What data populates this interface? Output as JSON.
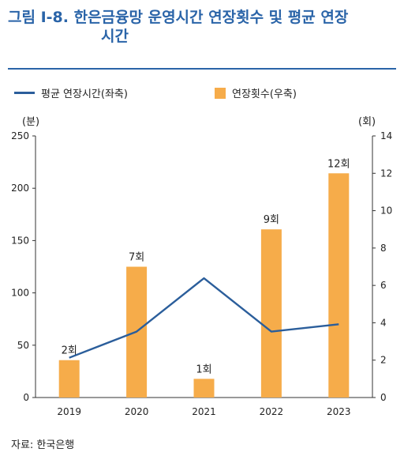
{
  "title": {
    "line1": "그림 I-8. 한은금융망 운영시간 연장횟수 및 평균 연장",
    "line2": "시간"
  },
  "source": "자료: 한국은행",
  "colors": {
    "title": "#2a64a8",
    "line": "#2b5e9b",
    "bar": "#f6ac4a",
    "axis": "#333333"
  },
  "chart_data": {
    "type": "bar",
    "categories": [
      "2019",
      "2020",
      "2021",
      "2022",
      "2023"
    ],
    "series": [
      {
        "name": "평균 연장시간(좌축)",
        "type": "line",
        "axis": "left",
        "values": [
          38,
          63,
          114,
          63,
          70
        ]
      },
      {
        "name": "연장횟수(우축)",
        "type": "bar",
        "axis": "right",
        "values": [
          2,
          7,
          1,
          9,
          12
        ]
      }
    ],
    "data_labels": [
      "2회",
      "7회",
      "1회",
      "9회",
      "12회"
    ],
    "y_left": {
      "unit": "(분)",
      "ylim": [
        0,
        250
      ],
      "ticks": [
        "0",
        "50",
        "100",
        "150",
        "200",
        "250"
      ]
    },
    "y_right": {
      "unit": "(회)",
      "ylim": [
        0,
        14
      ],
      "ticks": [
        "0",
        "2",
        "4",
        "6",
        "8",
        "10",
        "12",
        "14"
      ]
    },
    "legend": {
      "placement": "top-left"
    },
    "grid": false
  }
}
